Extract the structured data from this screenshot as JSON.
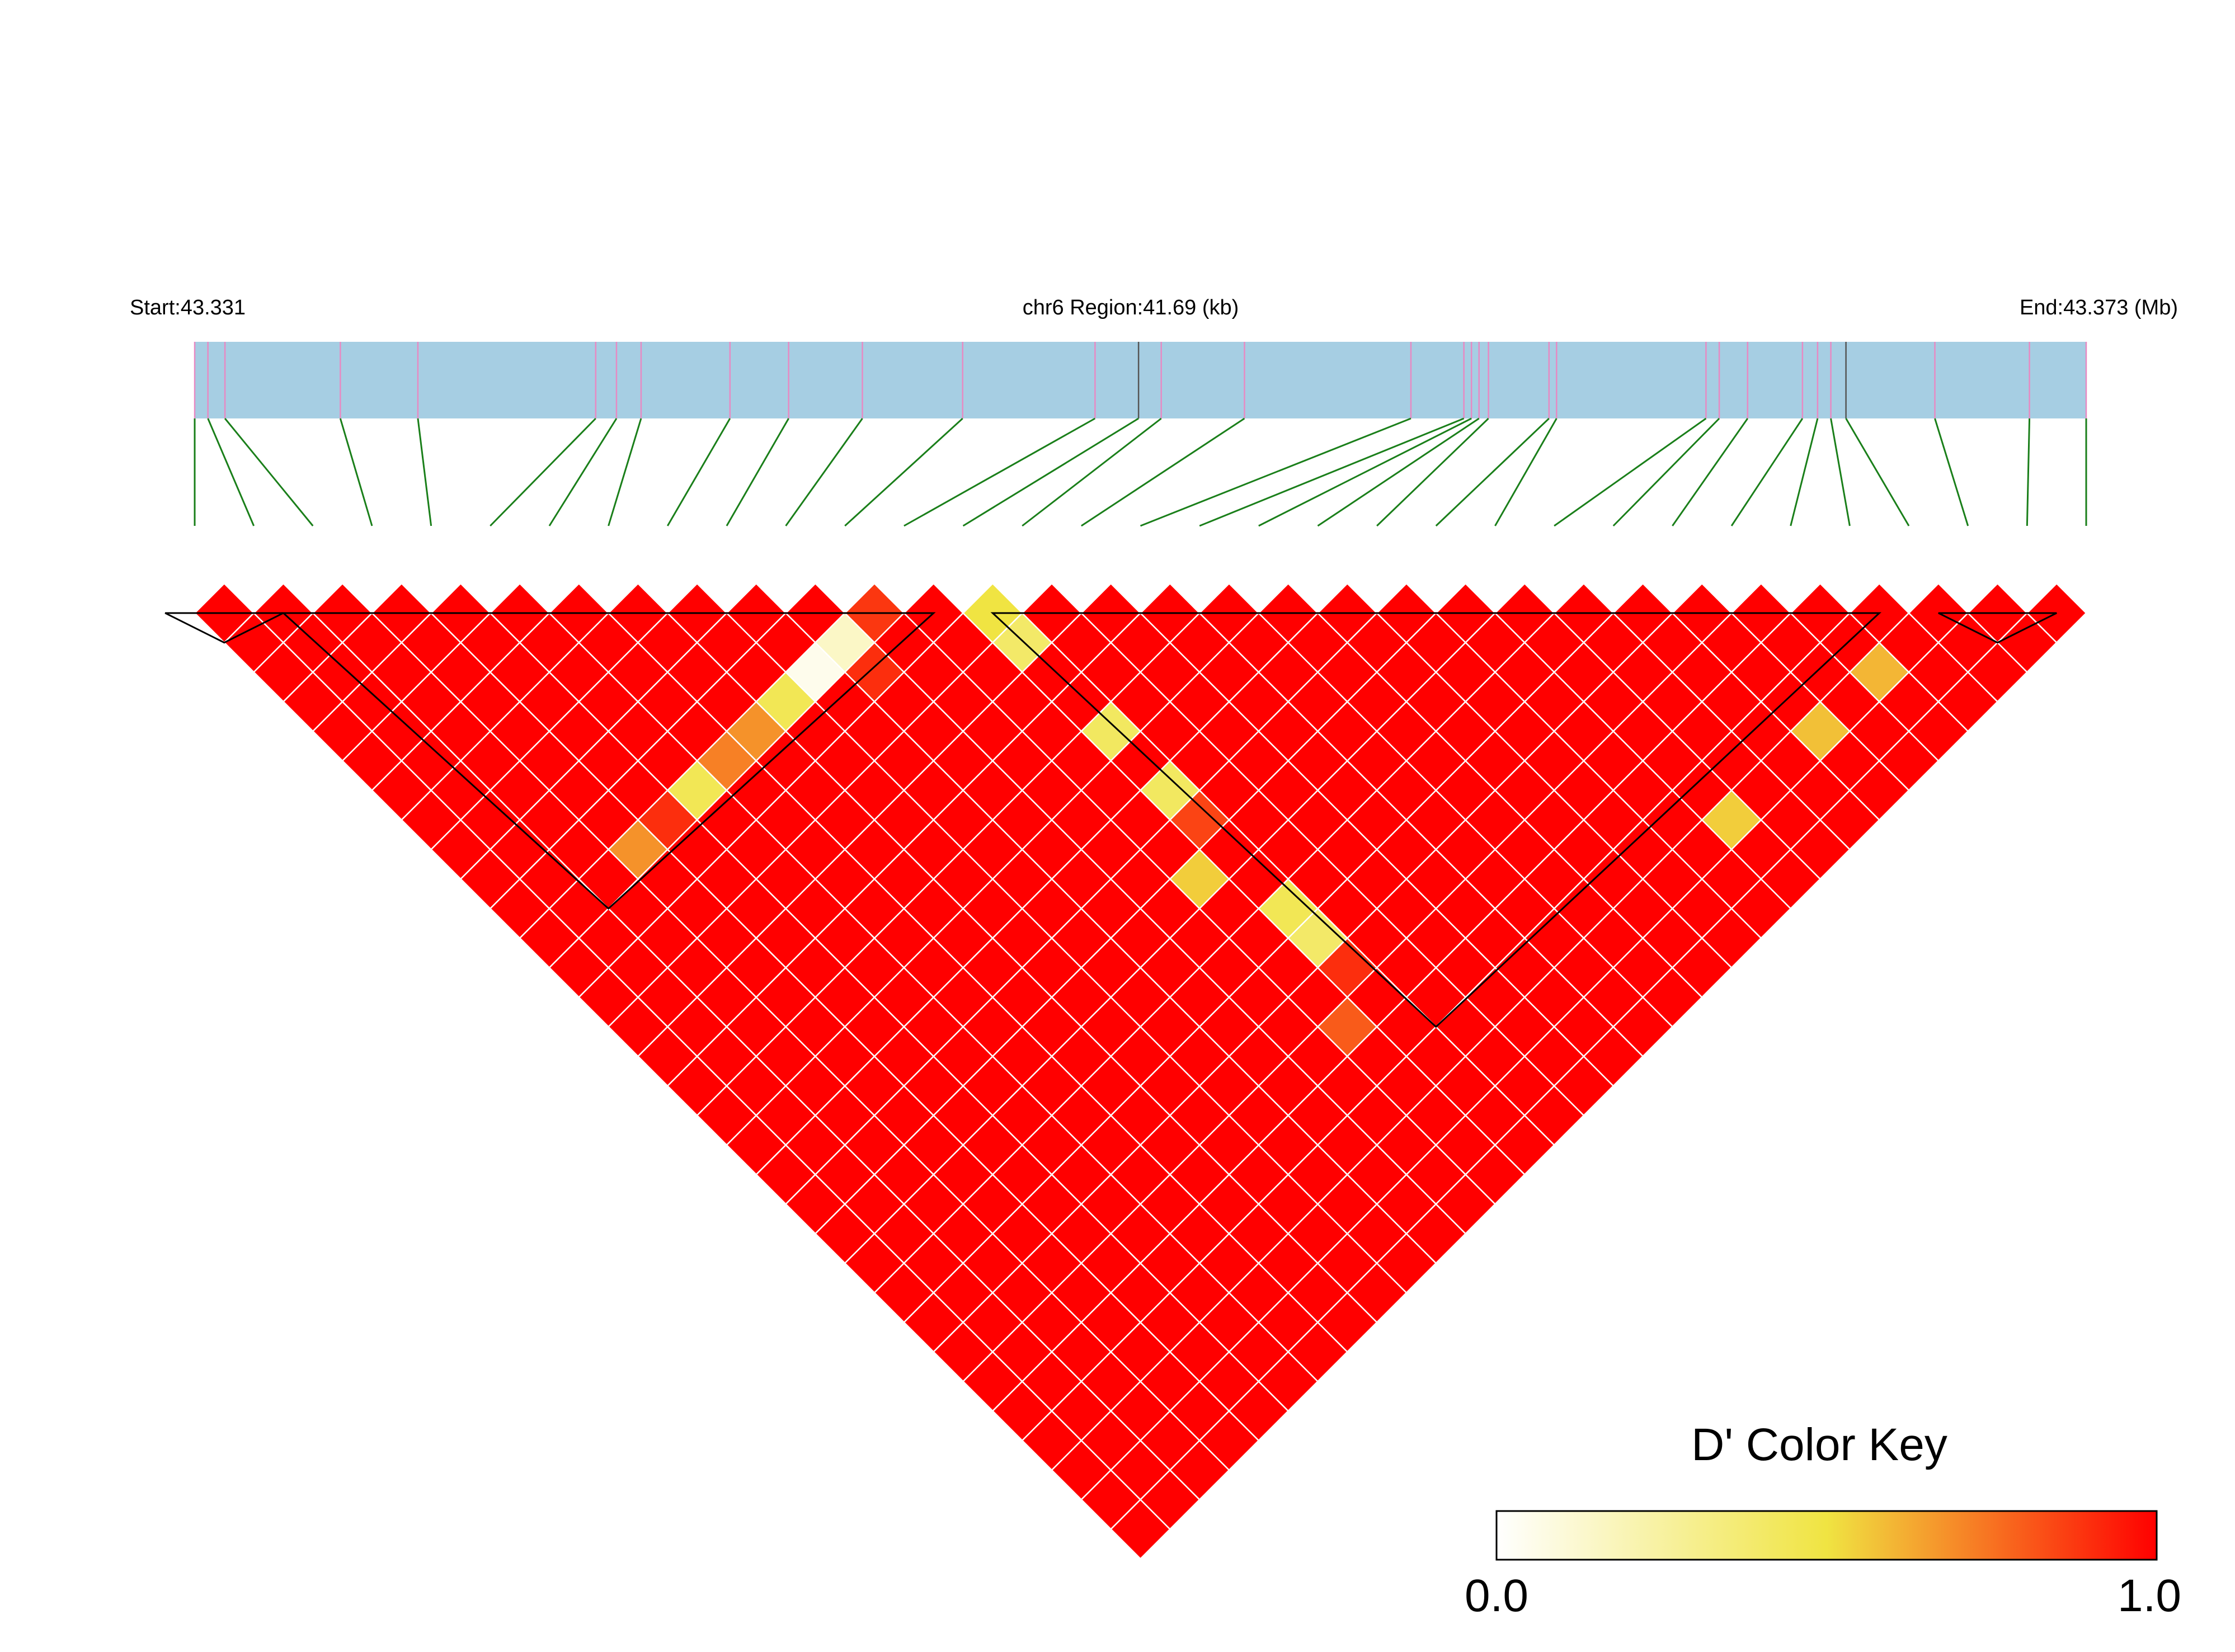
{
  "header": {
    "start_label": "Start:43.331",
    "region_label": "chr6 Region:41.69 (kb)",
    "end_label": "End:43.373 (Mb)"
  },
  "colors": {
    "region_bar": "#a6cee3",
    "snp_tick": "#e78ac3",
    "tagged_tick": "#555555",
    "connector": "#1a7f1a",
    "ld_high": "#ff0000",
    "ld_mid": "#f0e442",
    "ld_low": "#ffffff",
    "cell_border": "#ffffff",
    "block_outline": "#000000"
  },
  "color_key": {
    "title": "D' Color Key",
    "min_label": "0.0",
    "max_label": "1.0"
  },
  "chart_data": {
    "type": "heatmap",
    "subtype": "LD triangle (D')",
    "chromosome": "chr6",
    "start_mb": 43.331,
    "end_mb": 43.373,
    "region_kb": 41.69,
    "n_snps": 33,
    "snp_positions_fraction": [
      0.0,
      0.007,
      0.016,
      0.077,
      0.118,
      0.212,
      0.223,
      0.236,
      0.283,
      0.314,
      0.353,
      0.406,
      0.476,
      0.499,
      0.511,
      0.555,
      0.643,
      0.671,
      0.675,
      0.679,
      0.684,
      0.716,
      0.72,
      0.799,
      0.806,
      0.821,
      0.85,
      0.858,
      0.865,
      0.873,
      0.92,
      0.97,
      1.0
    ],
    "tagged_snp_indices": [
      13,
      29
    ],
    "default_value": 1.0,
    "cells": [
      {
        "i": 11,
        "j": 12,
        "value": 0.88
      },
      {
        "i": 10,
        "j": 12,
        "value": 0.15
      },
      {
        "i": 9,
        "j": 12,
        "value": 0.05
      },
      {
        "i": 8,
        "j": 12,
        "value": 0.45
      },
      {
        "i": 7,
        "j": 12,
        "value": 0.68
      },
      {
        "i": 6,
        "j": 12,
        "value": 0.72
      },
      {
        "i": 5,
        "j": 12,
        "value": 0.45
      },
      {
        "i": 4,
        "j": 12,
        "value": 0.9
      },
      {
        "i": 3,
        "j": 12,
        "value": 0.68
      },
      {
        "i": 10,
        "j": 13,
        "value": 0.9
      },
      {
        "i": 13,
        "j": 14,
        "value": 0.5
      },
      {
        "i": 13,
        "j": 15,
        "value": 0.4
      },
      {
        "i": 13,
        "j": 18,
        "value": 0.42
      },
      {
        "i": 13,
        "j": 20,
        "value": 0.42
      },
      {
        "i": 13,
        "j": 21,
        "value": 0.85
      },
      {
        "i": 13,
        "j": 24,
        "value": 0.45
      },
      {
        "i": 13,
        "j": 25,
        "value": 0.4
      },
      {
        "i": 13,
        "j": 26,
        "value": 0.9
      },
      {
        "i": 12,
        "j": 22,
        "value": 0.55
      },
      {
        "i": 12,
        "j": 27,
        "value": 0.8
      },
      {
        "i": 27,
        "j": 30,
        "value": 0.6
      },
      {
        "i": 25,
        "j": 30,
        "value": 0.58
      },
      {
        "i": 22,
        "j": 30,
        "value": 0.55
      }
    ],
    "ld_blocks": [
      {
        "from": 0,
        "to": 1
      },
      {
        "from": 2,
        "to": 12
      },
      {
        "from": 14,
        "to": 28
      },
      {
        "from": 30,
        "to": 31
      }
    ],
    "color_scale": {
      "min": 0.0,
      "max": 1.0,
      "stops": [
        "#ffffff",
        "#f0e442",
        "#ff0000"
      ]
    }
  }
}
